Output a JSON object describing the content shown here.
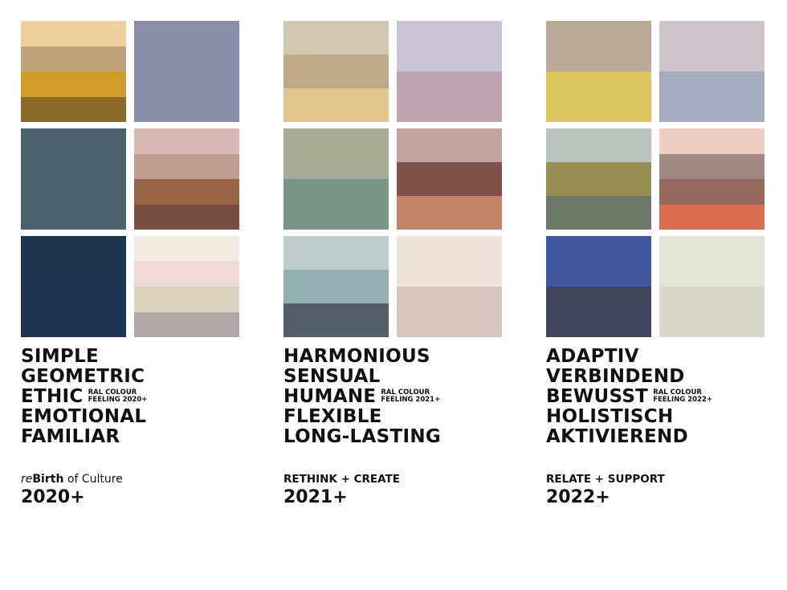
{
  "columns": [
    {
      "swatches": [
        [
          "#f0cfa0",
          "#c0a27a",
          "#d39c2b",
          "#8b6a28"
        ],
        [
          "#8a8da7"
        ],
        [
          "#4d616c"
        ],
        [
          "#dbb8b1",
          "#c19c92",
          "#976446",
          "#784e42"
        ],
        [
          "#1e3350",
          "#1e3352"
        ],
        [
          "#f3ebe2",
          "#eddad7",
          "#dcd3c0",
          "#aea7a4"
        ]
      ],
      "headline": [
        "SIMPLE",
        "GEOMETRIC",
        "ETHIC",
        "EMOTIONAL",
        "FAMILIAR"
      ],
      "ral_label": [
        "RAL COLOUR",
        "FEELING 2020+"
      ],
      "subtitle_italic": "re",
      "subtitle_bold": "Birth",
      "subtitle_rest": " of Culture",
      "year": "2020+"
    },
    {
      "swatches": [
        [
          "#d0c8b3",
          "#bfa986",
          "#e2c58d"
        ],
        [
          "#cbc3d3",
          "#bca4b0"
        ],
        [
          "#a8ab96",
          "#7a9486"
        ],
        [
          "#c1a29c",
          "#80514c",
          "#c4836a"
        ],
        [
          "#bfcccc",
          "#95b0b4",
          "#535f68"
        ],
        [
          "#efe4da",
          "#d5c6c0"
        ]
      ],
      "headline": [
        "HARMONIOUS",
        "SENSUAL",
        "HUMANE",
        "FLEXIBLE",
        "LONG-LASTING"
      ],
      "ral_label": [
        "RAL COLOUR",
        "FEELING 2021+"
      ],
      "subtitle": "RETHINK + CREATE",
      "year": "2021+"
    },
    {
      "swatches": [
        [
          "#b8a999",
          "#dec761"
        ],
        [
          "#ccc3cb",
          "#a4abbd"
        ],
        [
          "#bbc5bd",
          "#968f55",
          "#6c7866"
        ],
        [
          "#eccfc2",
          "#a38985",
          "#966860",
          "#dc6e52"
        ],
        [
          "#4257a2",
          "#3f465d"
        ],
        [
          "#e3e3d8",
          "#dbd6cc"
        ]
      ],
      "headline": [
        "ADAPTIV",
        "VERBINDEND",
        "BEWUSST",
        "HOLISTISCH",
        "AKTIVIEREND"
      ],
      "ral_label": [
        "RAL COLOUR",
        "FEELING 2022+"
      ],
      "subtitle": "RELATE + SUPPORT",
      "year": "2022+"
    }
  ]
}
